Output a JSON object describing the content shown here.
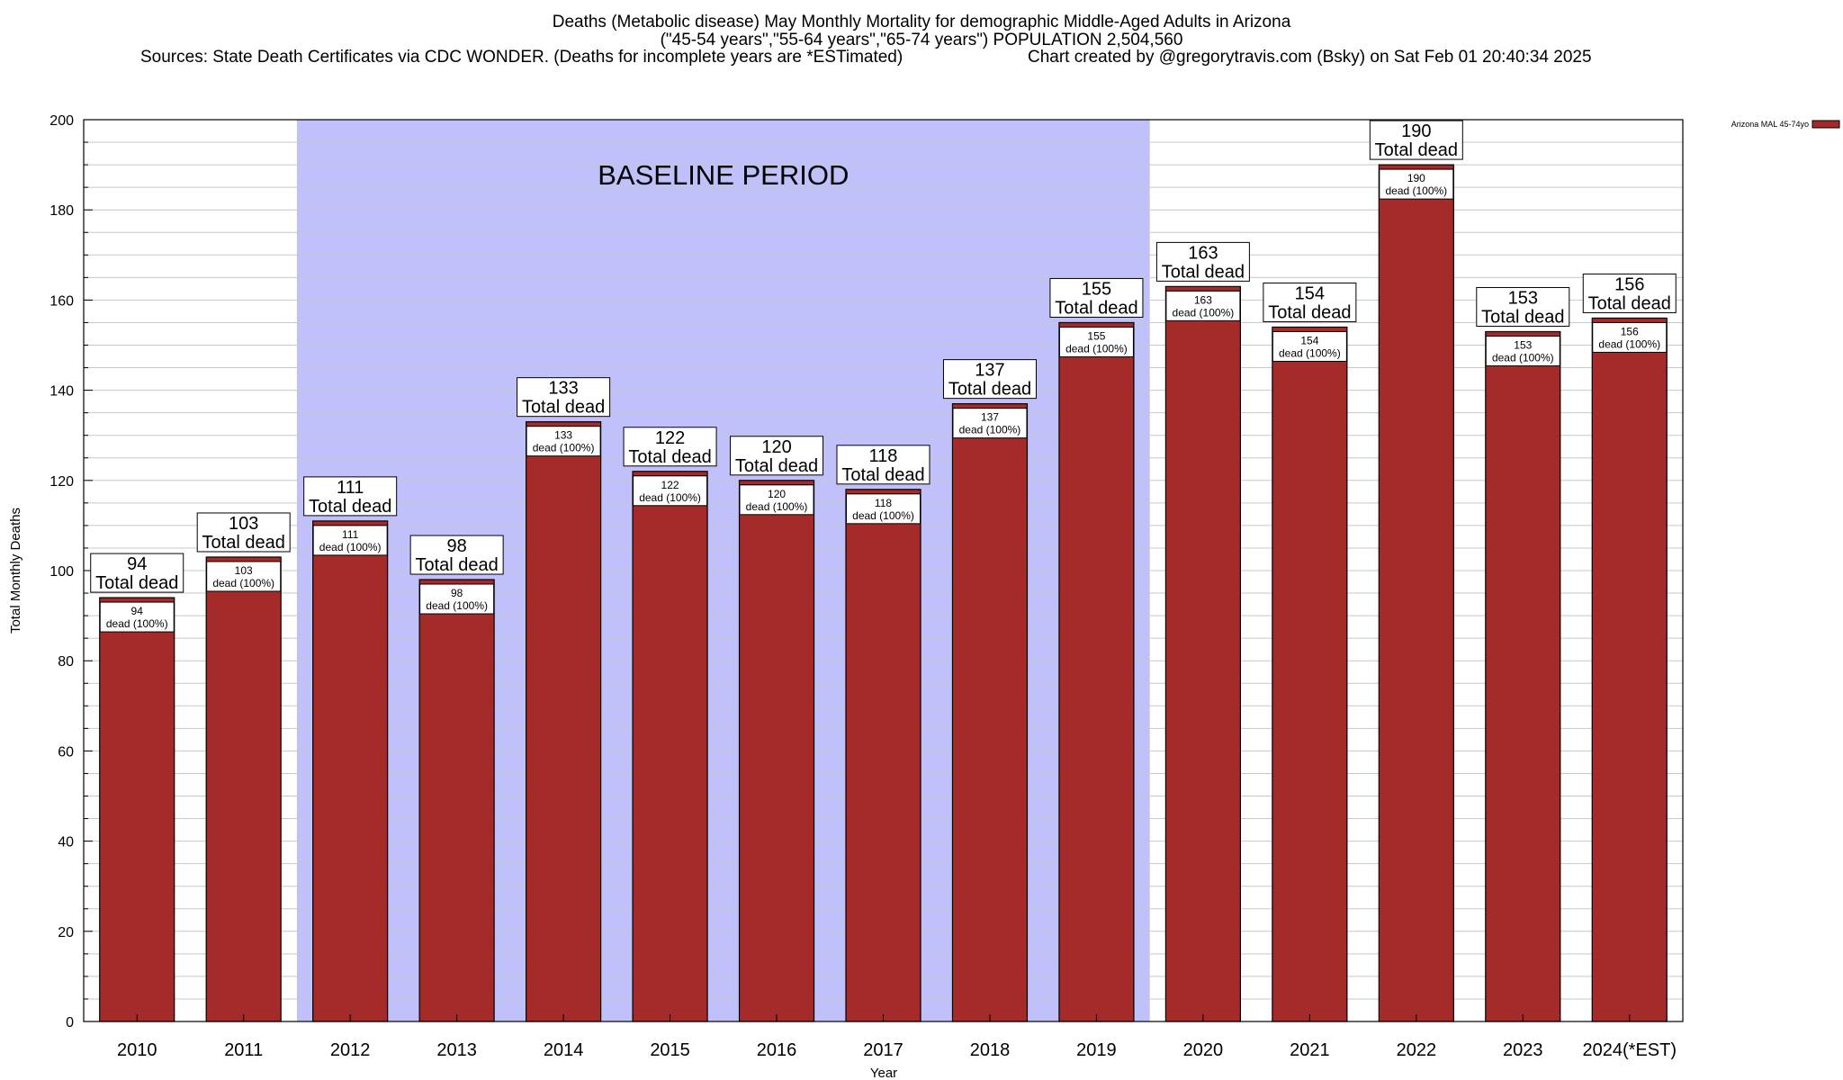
{
  "header": {
    "title_line1": "Deaths (Metabolic disease) May Monthly Mortality for demographic Middle-Aged Adults in Arizona",
    "title_line2": "(\"45-54 years\",\"55-64 years\",\"65-74 years\") POPULATION 2,504,560",
    "sources": "Sources: State Death Certificates via CDC WONDER. (Deaths for incomplete years are *ESTimated)",
    "credit": "Chart created by @gregorytravis.com (Bsky) on Sat Feb 01 20:40:34 2025"
  },
  "colors": {
    "bar": "#a52a2a",
    "baseline_shade": "#c0c0fb",
    "grid": "#c8c8c8"
  },
  "chart_data": {
    "type": "bar",
    "categories": [
      "2010",
      "2011",
      "2012",
      "2013",
      "2014",
      "2015",
      "2016",
      "2017",
      "2018",
      "2019",
      "2020",
      "2021",
      "2022",
      "2023",
      "2024(*EST)"
    ],
    "series": [
      {
        "name": "Arizona MAL 45-74yo",
        "values": [
          94,
          103,
          111,
          98,
          133,
          122,
          120,
          118,
          137,
          155,
          163,
          154,
          190,
          153,
          156
        ]
      }
    ],
    "xlabel": "Year",
    "ylabel": "Total Monthly Deaths",
    "ylim": [
      0,
      200
    ],
    "yticks": [
      0,
      20,
      40,
      60,
      80,
      100,
      120,
      140,
      160,
      180,
      200
    ],
    "grid": true,
    "legend_position": "top-right",
    "baseline_period": {
      "label": "BASELINE PERIOD",
      "from": "2012",
      "to": "2019"
    },
    "annotations": {
      "total_label": "Total dead",
      "inner_label": "dead (100%)"
    }
  }
}
